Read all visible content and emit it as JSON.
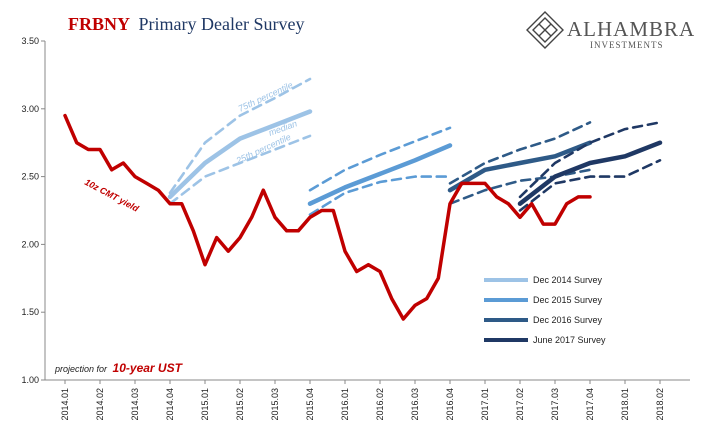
{
  "chart_data": {
    "type": "line",
    "title": "FRBNY",
    "subtitle": "Primary Dealer Survey",
    "logo": {
      "name": "ALHAMBRA",
      "tagline": "INVESTMENTS"
    },
    "categories": [
      "2014.01",
      null,
      null,
      "2014.02",
      null,
      null,
      "2014.03",
      null,
      null,
      "2014.04",
      null,
      null,
      "2015.01",
      null,
      null,
      "2015.02",
      null,
      null,
      "2015.03",
      null,
      null,
      "2015.04",
      null,
      null,
      "2016.01",
      null,
      null,
      "2016.02",
      null,
      null,
      "2016.03",
      null,
      null,
      "2016.04",
      null,
      null,
      "2017.01",
      null,
      null,
      "2017.02",
      null,
      null,
      "2017.03",
      null,
      null,
      "2017.04",
      null,
      null,
      "2018.01",
      null,
      null,
      "2018.02",
      null,
      null
    ],
    "ylim": [
      1.0,
      3.5
    ],
    "yticks": [
      {
        "value": 1.0,
        "label": "1.00"
      },
      {
        "value": 1.5,
        "label": "1.50"
      },
      {
        "value": 2.0,
        "label": "2.00"
      },
      {
        "value": 2.5,
        "label": "2.50"
      },
      {
        "value": 3.0,
        "label": "3.00"
      },
      {
        "value": 3.5,
        "label": "3.50"
      }
    ],
    "grid": false,
    "yield": {
      "name": "10z CMT yield",
      "color": "#c00000",
      "values": [
        2.95,
        2.75,
        2.7,
        2.7,
        2.55,
        2.6,
        2.5,
        2.45,
        2.4,
        2.3,
        2.3,
        2.1,
        1.85,
        2.05,
        1.95,
        2.05,
        2.2,
        2.4,
        2.2,
        2.1,
        2.1,
        2.2,
        2.25,
        2.25,
        1.95,
        1.8,
        1.85,
        1.8,
        1.6,
        1.45,
        1.55,
        1.6,
        1.75,
        2.3,
        2.45,
        2.45,
        2.45,
        2.35,
        2.3,
        2.2,
        2.3,
        2.15,
        2.15,
        2.3,
        2.35,
        2.35,
        null,
        null,
        null,
        null,
        null,
        null,
        null,
        null
      ]
    },
    "surveys": [
      {
        "name": "Dec 2014 Survey",
        "color": "#9dc3e6",
        "x": [
          "2014.04",
          "2015.01",
          "2015.02",
          "2015.03",
          "2015.04"
        ],
        "values": [
          2.35,
          2.6,
          2.78,
          2.88,
          2.98
        ],
        "upper": [
          2.38,
          2.75,
          2.95,
          3.08,
          3.22
        ],
        "lower": [
          2.3,
          2.5,
          2.6,
          2.7,
          2.8
        ]
      },
      {
        "name": "Dec 2015 Survey",
        "color": "#5b9bd5",
        "x": [
          "2015.04",
          "2016.01",
          "2016.02",
          "2016.03",
          "2016.04"
        ],
        "values": [
          2.3,
          2.42,
          2.52,
          2.62,
          2.73
        ],
        "upper": [
          2.4,
          2.55,
          2.66,
          2.76,
          2.86
        ],
        "lower": [
          2.22,
          2.38,
          2.46,
          2.5,
          2.5
        ]
      },
      {
        "name": "Dec 2016 Survey",
        "color": "#2e5a87",
        "x": [
          "2016.04",
          "2017.01",
          "2017.02",
          "2017.03",
          "2017.04"
        ],
        "values": [
          2.4,
          2.55,
          2.6,
          2.65,
          2.75
        ],
        "upper": [
          2.45,
          2.6,
          2.7,
          2.78,
          2.9
        ],
        "lower": [
          2.3,
          2.4,
          2.47,
          2.5,
          2.55
        ]
      },
      {
        "name": "June 2017 Survey",
        "color": "#1f3864",
        "x": [
          "2017.02",
          "2017.03",
          "2017.04",
          "2018.01",
          "2018.02"
        ],
        "values": [
          2.3,
          2.5,
          2.6,
          2.65,
          2.75
        ],
        "upper": [
          2.35,
          2.6,
          2.75,
          2.85,
          2.9
        ],
        "lower": [
          2.25,
          2.45,
          2.5,
          2.5,
          2.62
        ]
      }
    ],
    "annotations": {
      "p75": "75th percentile",
      "median": "median",
      "p25": "25th percentile",
      "projection": "projection for",
      "instrument": "10-year UST"
    }
  }
}
